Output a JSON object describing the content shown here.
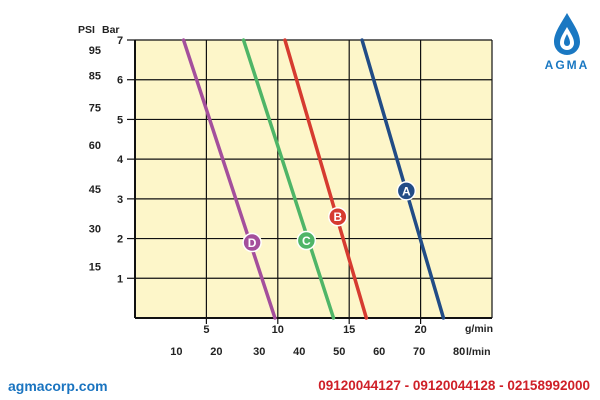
{
  "brand": {
    "logo_text": "AGMA",
    "website": "agmacorp.com",
    "phones": "09120044127 - 09120044128 - 02158992000"
  },
  "colors": {
    "plot_bg": "#fdf6c9",
    "grid": "#111111",
    "A": "#214c86",
    "B": "#d63b30",
    "C": "#4fb567",
    "D": "#a44f9c",
    "brand_blue": "#1a78c2",
    "phone_red": "#cf2028"
  },
  "chart_data": {
    "type": "line",
    "title": "",
    "grid": true,
    "y_axis": {
      "label": "Bar",
      "range": [
        0,
        7
      ],
      "ticks": [
        "1",
        "2",
        "3",
        "4",
        "5",
        "6",
        "7"
      ]
    },
    "y_axis_psi": {
      "label": "PSI",
      "ticks": [
        {
          "label": "15",
          "bar": 1.3
        },
        {
          "label": "30",
          "bar": 2.25
        },
        {
          "label": "45",
          "bar": 3.25
        },
        {
          "label": "60",
          "bar": 4.35
        },
        {
          "label": "75",
          "bar": 5.3
        },
        {
          "label": "85",
          "bar": 6.1
        },
        {
          "label": "95",
          "bar": 6.75
        }
      ]
    },
    "x_axis_gpm": {
      "label": "g/min",
      "range": [
        0,
        25
      ],
      "ticks": [
        "5",
        "10",
        "15",
        "20"
      ]
    },
    "x_axis_lpm": {
      "label": "l/min",
      "ticks": [
        {
          "label": "10",
          "gpm": 2.9
        },
        {
          "label": "20",
          "gpm": 5.7
        },
        {
          "label": "30",
          "gpm": 8.7
        },
        {
          "label": "40",
          "gpm": 11.5
        },
        {
          "label": "50",
          "gpm": 14.3
        },
        {
          "label": "60",
          "gpm": 17.1
        },
        {
          "label": "70",
          "gpm": 19.9
        },
        {
          "label": "80",
          "gpm": 22.7
        }
      ]
    },
    "series": [
      {
        "name": "A",
        "color_key": "A",
        "points": [
          [
            15.9,
            7
          ],
          [
            21.6,
            0
          ]
        ],
        "marker": [
          19.0,
          3.2
        ]
      },
      {
        "name": "B",
        "color_key": "B",
        "points": [
          [
            10.5,
            7
          ],
          [
            16.2,
            0
          ]
        ],
        "marker": [
          14.2,
          2.55
        ]
      },
      {
        "name": "C",
        "color_key": "C",
        "points": [
          [
            7.6,
            7
          ],
          [
            13.9,
            0
          ]
        ],
        "marker": [
          12.0,
          1.95
        ]
      },
      {
        "name": "D",
        "color_key": "D",
        "points": [
          [
            3.4,
            7
          ],
          [
            9.8,
            0
          ]
        ],
        "marker": [
          8.2,
          1.9
        ]
      }
    ]
  }
}
